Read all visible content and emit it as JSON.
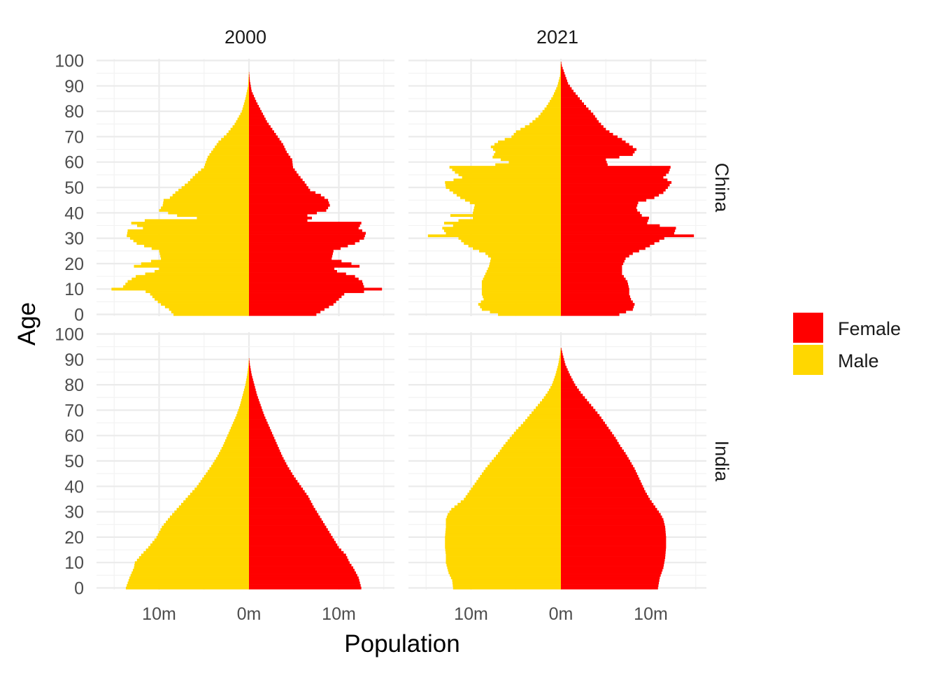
{
  "chart_data": {
    "type": "bar",
    "subtype": "population-pyramid-facet-grid",
    "xlabel": "Population",
    "ylabel": "Age",
    "x_unit": "m",
    "x_range": [
      -16,
      16
    ],
    "x_ticks": [
      {
        "value": -10,
        "label": "10m"
      },
      {
        "value": 0,
        "label": "0m"
      },
      {
        "value": 10,
        "label": "10m"
      }
    ],
    "y_range": [
      0,
      100
    ],
    "y_ticks": [
      0,
      10,
      20,
      30,
      40,
      50,
      60,
      70,
      80,
      90,
      100
    ],
    "grid": true,
    "legend": {
      "position": "right",
      "entries": [
        {
          "name": "Female",
          "color": "#ff0000"
        },
        {
          "name": "Male",
          "color": "#ffd700"
        }
      ]
    },
    "columns": [
      "2000",
      "2021"
    ],
    "rows": [
      "China",
      "India"
    ],
    "series_colors": {
      "female": "#ff0000",
      "male": "#ffd700"
    },
    "note": "values in millions; male plotted to the left of 0, female to the right",
    "panels": [
      {
        "country": "China",
        "year": "2000",
        "male_profile": [
          [
            0,
            8.4
          ],
          [
            2,
            8.9
          ],
          [
            4,
            9.8
          ],
          [
            6,
            10.5
          ],
          [
            8,
            11.0
          ],
          [
            9,
            11.5
          ],
          [
            10,
            15.3
          ],
          [
            11,
            14.0
          ],
          [
            13,
            13.5
          ],
          [
            15,
            12.6
          ],
          [
            17,
            10.5
          ],
          [
            18,
            10.0
          ],
          [
            19,
            12.8
          ],
          [
            20,
            12.0
          ],
          [
            22,
            9.8
          ],
          [
            25,
            10.0
          ],
          [
            28,
            12.5
          ],
          [
            31,
            13.6
          ],
          [
            33,
            13.5
          ],
          [
            34,
            11.8
          ],
          [
            36,
            13.1
          ],
          [
            37,
            11.6
          ],
          [
            38,
            5.8
          ],
          [
            39,
            8.0
          ],
          [
            41,
            10.0
          ],
          [
            43,
            9.6
          ],
          [
            45,
            9.5
          ],
          [
            46,
            8.8
          ],
          [
            48,
            8.2
          ],
          [
            50,
            7.5
          ],
          [
            52,
            6.8
          ],
          [
            55,
            6.0
          ],
          [
            58,
            5.0
          ],
          [
            62,
            4.6
          ],
          [
            65,
            4.0
          ],
          [
            68,
            3.4
          ],
          [
            71,
            2.5
          ],
          [
            75,
            1.6
          ],
          [
            80,
            0.8
          ],
          [
            85,
            0.4
          ],
          [
            90,
            0.1
          ],
          [
            96,
            0.0
          ]
        ],
        "female_profile": [
          [
            0,
            7.5
          ],
          [
            2,
            8.4
          ],
          [
            4,
            9.4
          ],
          [
            6,
            10.0
          ],
          [
            8,
            10.6
          ],
          [
            9,
            12.8
          ],
          [
            10,
            14.8
          ],
          [
            11,
            12.8
          ],
          [
            13,
            12.6
          ],
          [
            15,
            11.8
          ],
          [
            17,
            9.8
          ],
          [
            18,
            9.5
          ],
          [
            19,
            12.3
          ],
          [
            20,
            11.4
          ],
          [
            22,
            9.2
          ],
          [
            25,
            9.4
          ],
          [
            28,
            11.8
          ],
          [
            30,
            12.8
          ],
          [
            32,
            13.0
          ],
          [
            34,
            12.2
          ],
          [
            36,
            12.5
          ],
          [
            37,
            6.5
          ],
          [
            38,
            7.0
          ],
          [
            39,
            6.5
          ],
          [
            41,
            8.6
          ],
          [
            43,
            9.0
          ],
          [
            45,
            8.8
          ],
          [
            47,
            8.0
          ],
          [
            49,
            6.8
          ],
          [
            52,
            6.2
          ],
          [
            55,
            5.5
          ],
          [
            58,
            4.9
          ],
          [
            61,
            4.8
          ],
          [
            64,
            4.2
          ],
          [
            67,
            3.8
          ],
          [
            70,
            3.2
          ],
          [
            73,
            2.6
          ],
          [
            76,
            2.0
          ],
          [
            80,
            1.4
          ],
          [
            84,
            0.8
          ],
          [
            88,
            0.3
          ],
          [
            92,
            0.1
          ],
          [
            96,
            0.0
          ]
        ]
      },
      {
        "country": "China",
        "year": "2021",
        "male_profile": [
          [
            0,
            7.0
          ],
          [
            2,
            8.8
          ],
          [
            4,
            9.2
          ],
          [
            6,
            8.6
          ],
          [
            8,
            8.8
          ],
          [
            10,
            8.8
          ],
          [
            13,
            8.8
          ],
          [
            16,
            8.4
          ],
          [
            19,
            8.0
          ],
          [
            22,
            7.8
          ],
          [
            24,
            8.4
          ],
          [
            26,
            9.8
          ],
          [
            28,
            10.8
          ],
          [
            30,
            11.4
          ],
          [
            31,
            14.8
          ],
          [
            32,
            12.8
          ],
          [
            34,
            13.2
          ],
          [
            35,
            12.0
          ],
          [
            36,
            13.0
          ],
          [
            37,
            11.4
          ],
          [
            38,
            9.8
          ],
          [
            39,
            12.3
          ],
          [
            40,
            9.8
          ],
          [
            43,
            9.6
          ],
          [
            46,
            11.2
          ],
          [
            48,
            12.0
          ],
          [
            50,
            12.8
          ],
          [
            52,
            12.9
          ],
          [
            54,
            11.0
          ],
          [
            56,
            11.8
          ],
          [
            58,
            12.4
          ],
          [
            59,
            7.3
          ],
          [
            60,
            5.8
          ],
          [
            62,
            7.6
          ],
          [
            64,
            7.3
          ],
          [
            66,
            7.8
          ],
          [
            68,
            7.0
          ],
          [
            70,
            5.5
          ],
          [
            72,
            5.0
          ],
          [
            75,
            3.5
          ],
          [
            78,
            2.5
          ],
          [
            82,
            1.6
          ],
          [
            86,
            0.9
          ],
          [
            90,
            0.4
          ],
          [
            94,
            0.1
          ],
          [
            100,
            0.0
          ]
        ],
        "female_profile": [
          [
            0,
            6.5
          ],
          [
            2,
            8.0
          ],
          [
            4,
            8.2
          ],
          [
            6,
            7.8
          ],
          [
            8,
            7.6
          ],
          [
            10,
            7.6
          ],
          [
            13,
            7.4
          ],
          [
            16,
            6.8
          ],
          [
            19,
            6.8
          ],
          [
            22,
            7.2
          ],
          [
            24,
            8.0
          ],
          [
            26,
            9.4
          ],
          [
            28,
            10.4
          ],
          [
            30,
            11.5
          ],
          [
            31,
            14.8
          ],
          [
            32,
            12.6
          ],
          [
            34,
            12.8
          ],
          [
            35,
            11.0
          ],
          [
            36,
            9.6
          ],
          [
            38,
            9.8
          ],
          [
            39,
            9.0
          ],
          [
            40,
            8.8
          ],
          [
            41,
            8.5
          ],
          [
            42,
            8.4
          ],
          [
            44,
            8.6
          ],
          [
            46,
            10.4
          ],
          [
            48,
            11.4
          ],
          [
            50,
            11.9
          ],
          [
            52,
            12.3
          ],
          [
            54,
            11.4
          ],
          [
            56,
            12.0
          ],
          [
            58,
            12.2
          ],
          [
            59,
            5.2
          ],
          [
            61,
            5.0
          ],
          [
            63,
            8.0
          ],
          [
            65,
            8.4
          ],
          [
            67,
            7.6
          ],
          [
            69,
            6.8
          ],
          [
            71,
            5.8
          ],
          [
            73,
            5.0
          ],
          [
            76,
            4.2
          ],
          [
            79,
            3.6
          ],
          [
            82,
            2.8
          ],
          [
            85,
            2.1
          ],
          [
            88,
            1.4
          ],
          [
            91,
            0.8
          ],
          [
            95,
            0.4
          ],
          [
            98,
            0.1
          ],
          [
            100,
            0.0
          ]
        ]
      },
      {
        "country": "India",
        "year": "2000",
        "male_profile": [
          [
            0,
            13.7
          ],
          [
            4,
            13.3
          ],
          [
            8,
            12.8
          ],
          [
            10,
            12.7
          ],
          [
            13,
            12.0
          ],
          [
            16,
            11.2
          ],
          [
            20,
            10.3
          ],
          [
            24,
            9.7
          ],
          [
            28,
            8.8
          ],
          [
            32,
            7.8
          ],
          [
            36,
            6.8
          ],
          [
            40,
            5.8
          ],
          [
            44,
            5.0
          ],
          [
            48,
            4.2
          ],
          [
            52,
            3.5
          ],
          [
            56,
            2.9
          ],
          [
            60,
            2.4
          ],
          [
            64,
            1.9
          ],
          [
            68,
            1.4
          ],
          [
            72,
            1.0
          ],
          [
            76,
            0.7
          ],
          [
            80,
            0.4
          ],
          [
            84,
            0.2
          ],
          [
            88,
            0.05
          ],
          [
            91,
            0.0
          ]
        ],
        "female_profile": [
          [
            0,
            12.5
          ],
          [
            4,
            12.2
          ],
          [
            8,
            11.6
          ],
          [
            10,
            11.2
          ],
          [
            13,
            10.8
          ],
          [
            16,
            10.0
          ],
          [
            20,
            9.3
          ],
          [
            24,
            8.6
          ],
          [
            28,
            7.9
          ],
          [
            32,
            7.2
          ],
          [
            36,
            6.6
          ],
          [
            40,
            5.8
          ],
          [
            44,
            5.0
          ],
          [
            48,
            4.3
          ],
          [
            52,
            3.7
          ],
          [
            56,
            3.2
          ],
          [
            60,
            2.7
          ],
          [
            64,
            2.2
          ],
          [
            68,
            1.7
          ],
          [
            72,
            1.3
          ],
          [
            76,
            0.9
          ],
          [
            80,
            0.6
          ],
          [
            84,
            0.3
          ],
          [
            88,
            0.1
          ],
          [
            91,
            0.0
          ]
        ]
      },
      {
        "country": "India",
        "year": "2021",
        "male_profile": [
          [
            0,
            12.0
          ],
          [
            3,
            12.1
          ],
          [
            6,
            12.5
          ],
          [
            10,
            12.8
          ],
          [
            13,
            12.8
          ],
          [
            16,
            12.9
          ],
          [
            20,
            12.9
          ],
          [
            24,
            12.8
          ],
          [
            27,
            12.8
          ],
          [
            29,
            12.6
          ],
          [
            31,
            12.2
          ],
          [
            33,
            11.5
          ],
          [
            35,
            10.8
          ],
          [
            38,
            10.2
          ],
          [
            41,
            9.6
          ],
          [
            44,
            9.0
          ],
          [
            47,
            8.4
          ],
          [
            50,
            7.7
          ],
          [
            53,
            7.0
          ],
          [
            56,
            6.4
          ],
          [
            59,
            5.7
          ],
          [
            62,
            5.0
          ],
          [
            65,
            4.2
          ],
          [
            68,
            3.5
          ],
          [
            71,
            2.8
          ],
          [
            74,
            2.1
          ],
          [
            77,
            1.5
          ],
          [
            80,
            1.0
          ],
          [
            84,
            0.6
          ],
          [
            88,
            0.3
          ],
          [
            92,
            0.1
          ],
          [
            95,
            0.0
          ]
        ],
        "female_profile": [
          [
            0,
            10.8
          ],
          [
            4,
            11.0
          ],
          [
            8,
            11.4
          ],
          [
            12,
            11.6
          ],
          [
            16,
            11.7
          ],
          [
            20,
            11.7
          ],
          [
            24,
            11.6
          ],
          [
            27,
            11.4
          ],
          [
            29,
            11.1
          ],
          [
            31,
            10.7
          ],
          [
            33,
            10.3
          ],
          [
            35,
            9.9
          ],
          [
            38,
            9.4
          ],
          [
            41,
            9.0
          ],
          [
            44,
            8.6
          ],
          [
            47,
            8.2
          ],
          [
            50,
            7.7
          ],
          [
            53,
            7.2
          ],
          [
            56,
            6.6
          ],
          [
            59,
            6.1
          ],
          [
            62,
            5.5
          ],
          [
            65,
            4.9
          ],
          [
            68,
            4.3
          ],
          [
            71,
            3.6
          ],
          [
            74,
            2.9
          ],
          [
            77,
            2.2
          ],
          [
            80,
            1.6
          ],
          [
            84,
            1.0
          ],
          [
            88,
            0.5
          ],
          [
            92,
            0.2
          ],
          [
            95,
            0.0
          ]
        ]
      }
    ]
  }
}
